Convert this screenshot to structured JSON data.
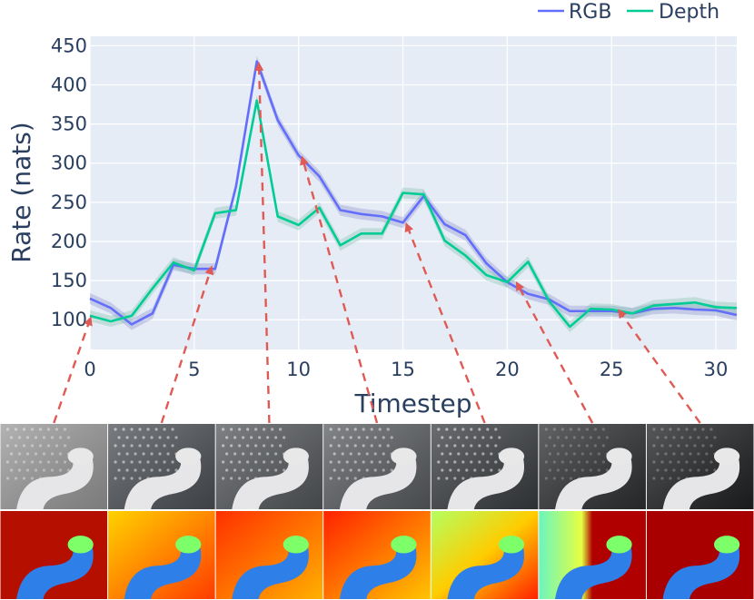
{
  "chart_data": {
    "type": "line",
    "xlabel": "Timestep",
    "ylabel": "Rate (nats)",
    "xlim": [
      0,
      31
    ],
    "ylim": [
      62,
      462
    ],
    "x_ticks": [
      0,
      5,
      10,
      15,
      20,
      25,
      30
    ],
    "y_ticks": [
      100,
      150,
      200,
      250,
      300,
      350,
      400,
      450
    ],
    "grid": true,
    "legend_position": "top-right",
    "series": [
      {
        "name": "RGB",
        "color": "#636efa",
        "band_color": "#8a90c8",
        "x": [
          0,
          1,
          2,
          3,
          4,
          5,
          6,
          7,
          8,
          9,
          10,
          11,
          12,
          13,
          14,
          15,
          16,
          17,
          18,
          19,
          20,
          21,
          22,
          23,
          24,
          25,
          26,
          27,
          28,
          29,
          30,
          31
        ],
        "values": [
          127,
          115,
          94,
          108,
          170,
          165,
          165,
          270,
          430,
          355,
          310,
          283,
          240,
          235,
          232,
          224,
          258,
          222,
          208,
          172,
          148,
          133,
          126,
          111,
          111,
          111,
          108,
          114,
          115,
          113,
          112,
          106
        ]
      },
      {
        "name": "Depth",
        "color": "#00cc96",
        "band_color": "#7fbfa8",
        "x": [
          0,
          1,
          2,
          3,
          4,
          5,
          6,
          7,
          8,
          9,
          10,
          11,
          12,
          13,
          14,
          15,
          16,
          17,
          18,
          19,
          20,
          21,
          22,
          23,
          24,
          25,
          26,
          27,
          28,
          29,
          30,
          31
        ],
        "values": [
          105,
          98,
          105,
          140,
          173,
          163,
          236,
          240,
          380,
          232,
          221,
          243,
          195,
          210,
          210,
          262,
          260,
          201,
          182,
          157,
          148,
          174,
          124,
          91,
          114,
          113,
          108,
          118,
          120,
          122,
          116,
          115
        ]
      }
    ],
    "annotation_arrows": [
      {
        "from_frame": 0,
        "to_x": 0,
        "to_y": 100
      },
      {
        "from_frame": 1,
        "to_x": 5.8,
        "to_y": 165
      },
      {
        "from_frame": 2,
        "to_x": 8.1,
        "to_y": 425
      },
      {
        "from_frame": 3,
        "to_x": 10.2,
        "to_y": 305
      },
      {
        "from_frame": 4,
        "to_x": 15.2,
        "to_y": 220
      },
      {
        "from_frame": 5,
        "to_x": 20.5,
        "to_y": 145
      },
      {
        "from_frame": 6,
        "to_x": 25.4,
        "to_y": 110
      }
    ]
  },
  "frames": {
    "rgb": [
      {
        "icon": "robot-arm-rgb-frame-icon",
        "bg": "#9a9a9a"
      },
      {
        "icon": "robot-arm-rgb-frame-icon",
        "bg": "#4d5156"
      },
      {
        "icon": "robot-arm-rgb-frame-icon",
        "bg": "#55585c"
      },
      {
        "icon": "robot-arm-rgb-frame-icon",
        "bg": "#5a5d61"
      },
      {
        "icon": "robot-arm-rgb-frame-icon",
        "bg": "#3a3d40"
      },
      {
        "icon": "robot-arm-rgb-frame-icon",
        "bg": "#2e3032"
      },
      {
        "icon": "robot-arm-rgb-frame-icon",
        "bg": "#1f2123"
      }
    ],
    "depth": [
      {
        "icon": "robot-arm-depth-frame-icon",
        "bg": "#b50f00"
      },
      {
        "icon": "robot-arm-depth-frame-icon",
        "bg": "#ff9a00"
      },
      {
        "icon": "robot-arm-depth-frame-icon",
        "bg": "#ff7a00"
      },
      {
        "icon": "robot-arm-depth-frame-icon",
        "bg": "#ff8c00"
      },
      {
        "icon": "robot-arm-depth-frame-icon",
        "bg": "#e65a00"
      },
      {
        "icon": "robot-arm-depth-frame-icon",
        "bg": "#a80000"
      },
      {
        "icon": "robot-arm-depth-frame-icon",
        "bg": "#a80000"
      }
    ],
    "arm_color": "#2f7fe8",
    "gripper_color": "#7dff6a"
  }
}
